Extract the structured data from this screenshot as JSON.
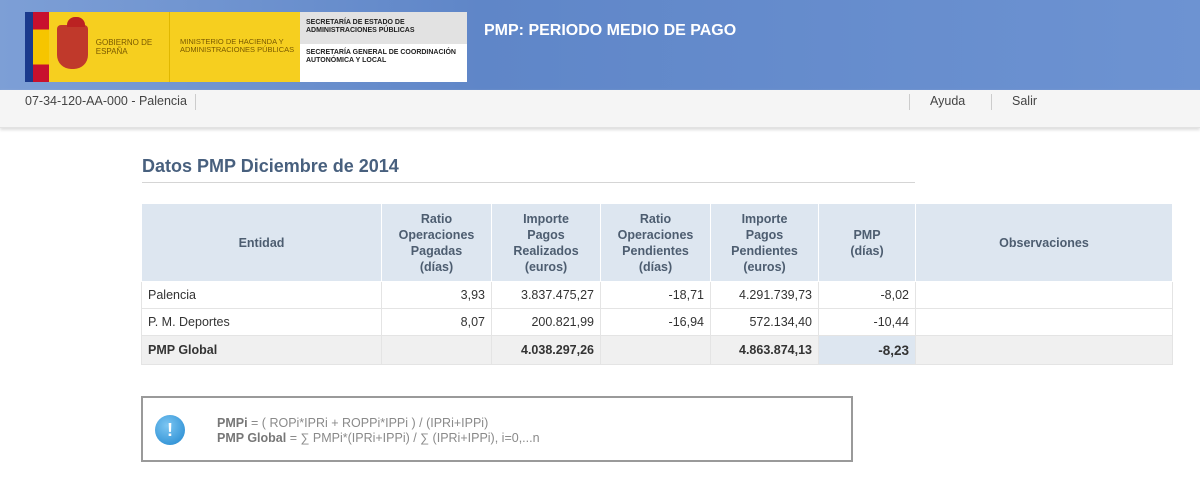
{
  "header": {
    "logo": {
      "gobierno": "GOBIERNO DE ESPAÑA",
      "ministerio": "MINISTERIO DE HACIENDA Y ADMINISTRACIONES PÚBLICAS",
      "secretaria_estado": "SECRETARÍA DE ESTADO DE ADMINISTRACIONES PÚBLICAS",
      "secretaria_general": "SECRETARÍA GENERAL DE COORDINACIÓN AUTONÓMICA Y LOCAL"
    },
    "title": "PMP: PERIODO MEDIO DE PAGO"
  },
  "nav": {
    "entity": "07-34-120-AA-000 - Palencia",
    "help": "Ayuda",
    "exit": "Salir"
  },
  "page": {
    "title": "Datos PMP Diciembre de 2014"
  },
  "table": {
    "headers": [
      "Entidad",
      "Ratio\nOperaciones\nPagadas\n(días)",
      "Importe\nPagos\nRealizados\n(euros)",
      "Ratio\nOperaciones\nPendientes\n(días)",
      "Importe\nPagos\nPendientes\n(euros)",
      "PMP\n(días)",
      "Observaciones"
    ],
    "rows": [
      [
        "Palencia",
        "3,93",
        "3.837.475,27",
        "-18,71",
        "4.291.739,73",
        "-8,02",
        ""
      ],
      [
        "P. M. Deportes",
        "8,07",
        "200.821,99",
        "-16,94",
        "572.134,40",
        "-10,44",
        ""
      ]
    ],
    "total": [
      "PMP Global",
      "",
      "4.038.297,26",
      "",
      "4.863.874,13",
      "-8,23",
      ""
    ]
  },
  "info": {
    "icon": "info-exclamation-icon",
    "f1_label": "PMPi",
    "f1": " = ( ROPi*IPRi + ROPPi*IPPi ) / (IPRi+IPPi)",
    "f2_label": "PMP Global",
    "f2": " = ∑ PMPi*(IPRi+IPPi) / ∑ (IPRi+IPPi), i=0,...n"
  }
}
